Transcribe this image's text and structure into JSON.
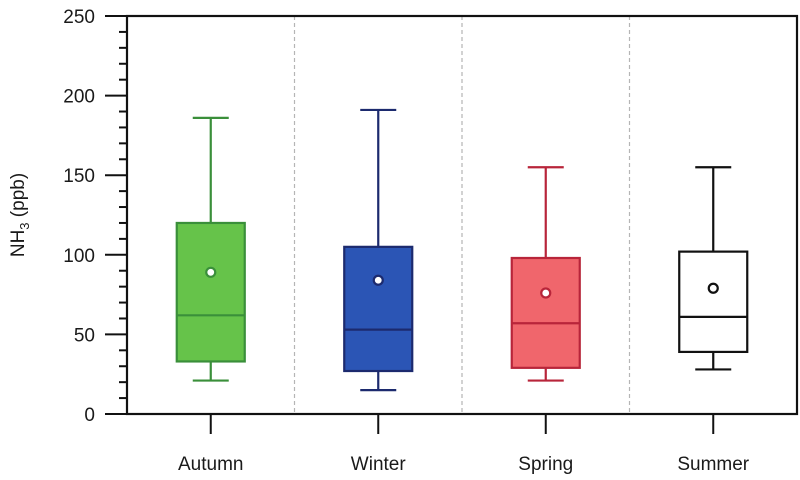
{
  "chart_data": {
    "type": "box",
    "title": "",
    "xlabel": "",
    "ylabel": "NH3 (ppb)",
    "ylabel_parts": {
      "main": "NH",
      "sub": "3",
      "unit": " (ppb)"
    },
    "ylim": [
      0,
      250
    ],
    "y_major_ticks": [
      0,
      50,
      100,
      150,
      200,
      250
    ],
    "y_minor_step": 10,
    "grid": false,
    "separators": "dashed vertical lines between categories",
    "legend": null,
    "categories": [
      "Autumn",
      "Winter",
      "Spring",
      "Summer"
    ],
    "series": [
      {
        "name": "Autumn",
        "whisker_low": 21,
        "q1": 33,
        "median": 62,
        "mean": 89,
        "q3": 120,
        "whisker_high": 186,
        "fill": "#66c34a",
        "stroke": "#3a8f3a"
      },
      {
        "name": "Winter",
        "whisker_low": 15,
        "q1": 27,
        "median": 53,
        "mean": 84,
        "q3": 105,
        "whisker_high": 191,
        "fill": "#2b55b5",
        "stroke": "#1c2a6e"
      },
      {
        "name": "Spring",
        "whisker_low": 21,
        "q1": 29,
        "median": 57,
        "mean": 76,
        "q3": 98,
        "whisker_high": 155,
        "fill": "#f0666c",
        "stroke": "#b8253a"
      },
      {
        "name": "Summer",
        "whisker_low": 28,
        "q1": 39,
        "median": 61,
        "mean": 79,
        "q3": 102,
        "whisker_high": 155,
        "fill": "#ffffff",
        "stroke": "#111111"
      }
    ]
  }
}
